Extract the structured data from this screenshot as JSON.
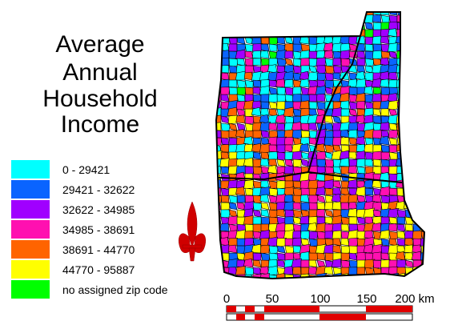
{
  "title": [
    "Average",
    "Annual",
    "Household",
    "Income"
  ],
  "legend": [
    {
      "label": "0 - 29421",
      "color": "#00ffff"
    },
    {
      "label": "29421 - 32622",
      "color": "#0a64ff"
    },
    {
      "label": "32622 - 34985",
      "color": "#a000ff"
    },
    {
      "label": "34985 - 38691",
      "color": "#ff10b0"
    },
    {
      "label": "38691 - 44770",
      "color": "#ff6400"
    },
    {
      "label": "44770 - 95887",
      "color": "#ffff00"
    },
    {
      "label": "no assigned zip code",
      "color": "#00ff00"
    }
  ],
  "scale_bar": {
    "labels": [
      "0",
      "50",
      "100",
      "150",
      "200 km"
    ]
  }
}
